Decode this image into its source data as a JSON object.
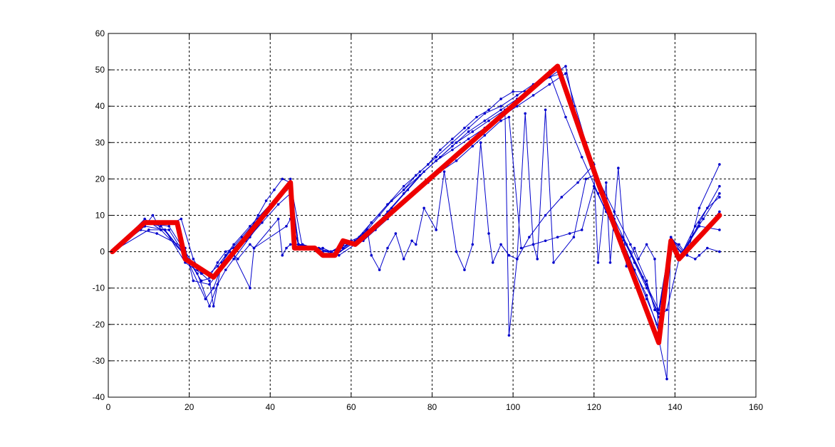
{
  "chart_data": {
    "type": "line",
    "title": "",
    "xlabel": "",
    "ylabel": "",
    "xlim": [
      0,
      160
    ],
    "ylim": [
      -40,
      60
    ],
    "xticks": [
      0,
      20,
      40,
      60,
      80,
      100,
      120,
      140,
      160
    ],
    "yticks": [
      -40,
      -30,
      -20,
      -10,
      0,
      10,
      20,
      30,
      40,
      50,
      60
    ],
    "grid": true,
    "legend": "none",
    "series_colors": {
      "trials": "#0000cc",
      "reference": "#ee0000"
    },
    "reference_series": {
      "x": [
        1,
        9,
        17,
        19,
        26,
        45,
        46,
        51,
        53,
        56,
        58,
        61,
        111,
        121,
        136,
        139,
        141,
        151
      ],
      "y": [
        0,
        8,
        8,
        -2,
        -7,
        19,
        1,
        1,
        -1,
        -1,
        3,
        2,
        51,
        19,
        -25,
        3,
        -2,
        10
      ]
    },
    "trial_series": [
      {
        "x": [
          1,
          9,
          11,
          13,
          15,
          19,
          25,
          27,
          29,
          31,
          35,
          37,
          39,
          41,
          43,
          45,
          47,
          49,
          51,
          53,
          55,
          57,
          59,
          61,
          63
        ],
        "y": [
          0,
          7,
          10,
          6,
          6,
          -1,
          -7,
          -3,
          0,
          1,
          6,
          10,
          14,
          17,
          20,
          19,
          2,
          1,
          1,
          0,
          0,
          1,
          2,
          3,
          4
        ]
      },
      {
        "x": [
          1,
          9,
          13,
          19,
          24,
          26,
          29,
          31,
          35,
          40,
          44,
          45,
          46,
          48,
          51,
          55,
          58,
          61,
          63,
          65,
          69,
          73,
          77,
          81,
          85,
          89,
          93,
          97,
          101,
          105,
          109,
          113,
          115,
          118,
          121,
          125,
          129,
          133,
          136,
          138,
          141,
          145,
          148,
          151
        ],
        "y": [
          0,
          9,
          6,
          -1,
          -13,
          -10,
          -1,
          2,
          7,
          13,
          17,
          20,
          2,
          2,
          1,
          0,
          1,
          3,
          5,
          8,
          13,
          17,
          21,
          25,
          29,
          33,
          36,
          39,
          42,
          45,
          48,
          51,
          40,
          29,
          19,
          9,
          0,
          -9,
          -18,
          -16,
          -2,
          7,
          12,
          15
        ]
      },
      {
        "x": [
          1,
          10,
          14,
          19,
          23,
          25,
          27,
          29,
          33,
          37,
          41,
          44,
          45,
          48,
          53,
          57,
          61,
          65,
          69,
          73,
          77,
          81,
          85,
          89,
          93,
          97,
          101,
          105,
          109,
          113,
          118,
          121,
          125,
          129,
          133,
          135,
          136,
          139,
          142,
          146,
          151
        ],
        "y": [
          0,
          6,
          6,
          -3,
          -6,
          -6,
          -4,
          -1,
          4,
          9,
          14,
          17,
          19,
          1,
          1,
          -1,
          2,
          6,
          11,
          16,
          21,
          25,
          28,
          31,
          34,
          37,
          40,
          43,
          46,
          49,
          30,
          20,
          11,
          2,
          -8,
          -16,
          -17,
          4,
          -1,
          8,
          18
        ]
      },
      {
        "x": [
          1,
          9,
          13,
          19,
          22,
          25,
          27,
          29,
          31,
          35,
          39,
          43,
          45,
          47,
          51,
          55,
          58,
          61,
          65,
          69,
          73,
          77,
          81,
          85,
          89,
          93,
          97,
          101,
          105,
          109,
          113,
          117,
          121,
          125,
          129,
          133,
          136,
          139,
          141,
          144,
          147,
          151
        ],
        "y": [
          0,
          8,
          7,
          -1,
          -6,
          -15,
          -9,
          -5,
          -2,
          4,
          10,
          16,
          18,
          2,
          1,
          0,
          2,
          3,
          8,
          13,
          18,
          22,
          26,
          30,
          34,
          38,
          40,
          43,
          46,
          49,
          37,
          26,
          16,
          6,
          -3,
          -12,
          -22,
          2,
          -2,
          4,
          9,
          16
        ]
      },
      {
        "x": [
          1,
          8,
          12,
          19,
          21,
          25,
          27,
          30,
          34,
          38,
          42,
          45,
          47,
          49,
          52,
          55,
          58,
          60,
          62,
          64,
          67,
          70,
          73,
          76,
          79,
          82,
          85,
          88,
          91,
          94,
          97,
          100,
          103,
          106,
          109,
          112,
          115,
          118,
          121,
          124,
          127,
          130,
          133,
          136,
          139,
          142,
          145,
          151
        ],
        "y": [
          0,
          6,
          5,
          1,
          -8,
          -9,
          -6,
          -2,
          3,
          8,
          13,
          16,
          2,
          1,
          0,
          0,
          1,
          3,
          4,
          6,
          10,
          14,
          17,
          21,
          24,
          28,
          31,
          34,
          37,
          39,
          42,
          44,
          44,
          46,
          48,
          49,
          40,
          30,
          20,
          11,
          3,
          -5,
          -13,
          -21,
          3,
          -1,
          3,
          11
        ]
      },
      {
        "x": [
          1,
          10,
          16,
          18,
          21,
          23,
          25,
          26,
          28,
          30,
          32,
          35,
          36,
          42,
          43,
          44,
          45,
          47,
          52,
          55,
          57,
          59,
          60,
          62,
          64,
          65,
          67,
          69,
          71,
          73,
          75,
          76,
          78,
          81,
          83,
          86,
          88,
          90,
          92,
          94,
          95,
          97,
          99,
          101,
          103,
          105,
          106,
          108,
          110,
          115,
          118,
          120,
          121,
          123,
          124,
          126,
          128,
          130,
          131,
          133,
          135,
          136,
          138,
          139,
          141,
          143,
          145,
          146,
          148,
          151
        ],
        "y": [
          0,
          8,
          8,
          9,
          -2,
          -6,
          -8,
          -15,
          -3,
          0,
          -2,
          2,
          1,
          9,
          -1,
          1,
          2,
          2,
          0,
          -1,
          1,
          3,
          2,
          4,
          6,
          -1,
          -5,
          1,
          5,
          -2,
          3,
          2,
          12,
          6,
          22,
          0,
          -5,
          2,
          30,
          5,
          -3,
          2,
          -1,
          -2,
          38,
          2,
          -2,
          39,
          -3,
          4,
          20,
          21,
          -3,
          19,
          -3,
          23,
          -4,
          1,
          -2,
          2,
          -2,
          -24,
          -35,
          3,
          2,
          -1,
          -2,
          -1,
          1,
          0
        ]
      },
      {
        "x": [
          1,
          9,
          14,
          19,
          23,
          26,
          28,
          31,
          35,
          36,
          44,
          45,
          47,
          52,
          56,
          60,
          63,
          66,
          69,
          72,
          75,
          79,
          82,
          86,
          90,
          93,
          97,
          99,
          102,
          105,
          108,
          111,
          114,
          117,
          120,
          123,
          127,
          130,
          133,
          136,
          139,
          143,
          146,
          151
        ],
        "y": [
          0,
          7,
          6,
          -1,
          -8,
          -7,
          -4,
          -1,
          -10,
          1,
          7,
          9,
          2,
          1,
          -1,
          2,
          3,
          6,
          9,
          13,
          16,
          19,
          22,
          25,
          29,
          32,
          36,
          37,
          1,
          2,
          3,
          4,
          5,
          6,
          18,
          11,
          4,
          -3,
          -10,
          -17,
          2,
          -1,
          12,
          24
        ]
      },
      {
        "x": [
          1,
          9,
          15,
          19,
          22,
          26,
          28,
          31,
          35,
          39,
          43,
          45,
          47,
          51,
          54,
          57,
          60,
          63,
          66,
          70,
          74,
          78,
          82,
          86,
          90,
          94,
          98,
          99,
          101,
          104,
          108,
          112,
          116,
          120,
          124,
          128,
          132,
          136,
          139,
          142,
          146,
          151
        ],
        "y": [
          0,
          8,
          7,
          0,
          -5,
          -7,
          -4,
          0,
          5,
          11,
          16,
          18,
          1,
          1,
          -1,
          0,
          2,
          4,
          7,
          12,
          17,
          22,
          26,
          30,
          33,
          36,
          39,
          -23,
          -2,
          4,
          10,
          15,
          19,
          24,
          9,
          2,
          -7,
          -16,
          4,
          0,
          7,
          6
        ]
      }
    ]
  }
}
